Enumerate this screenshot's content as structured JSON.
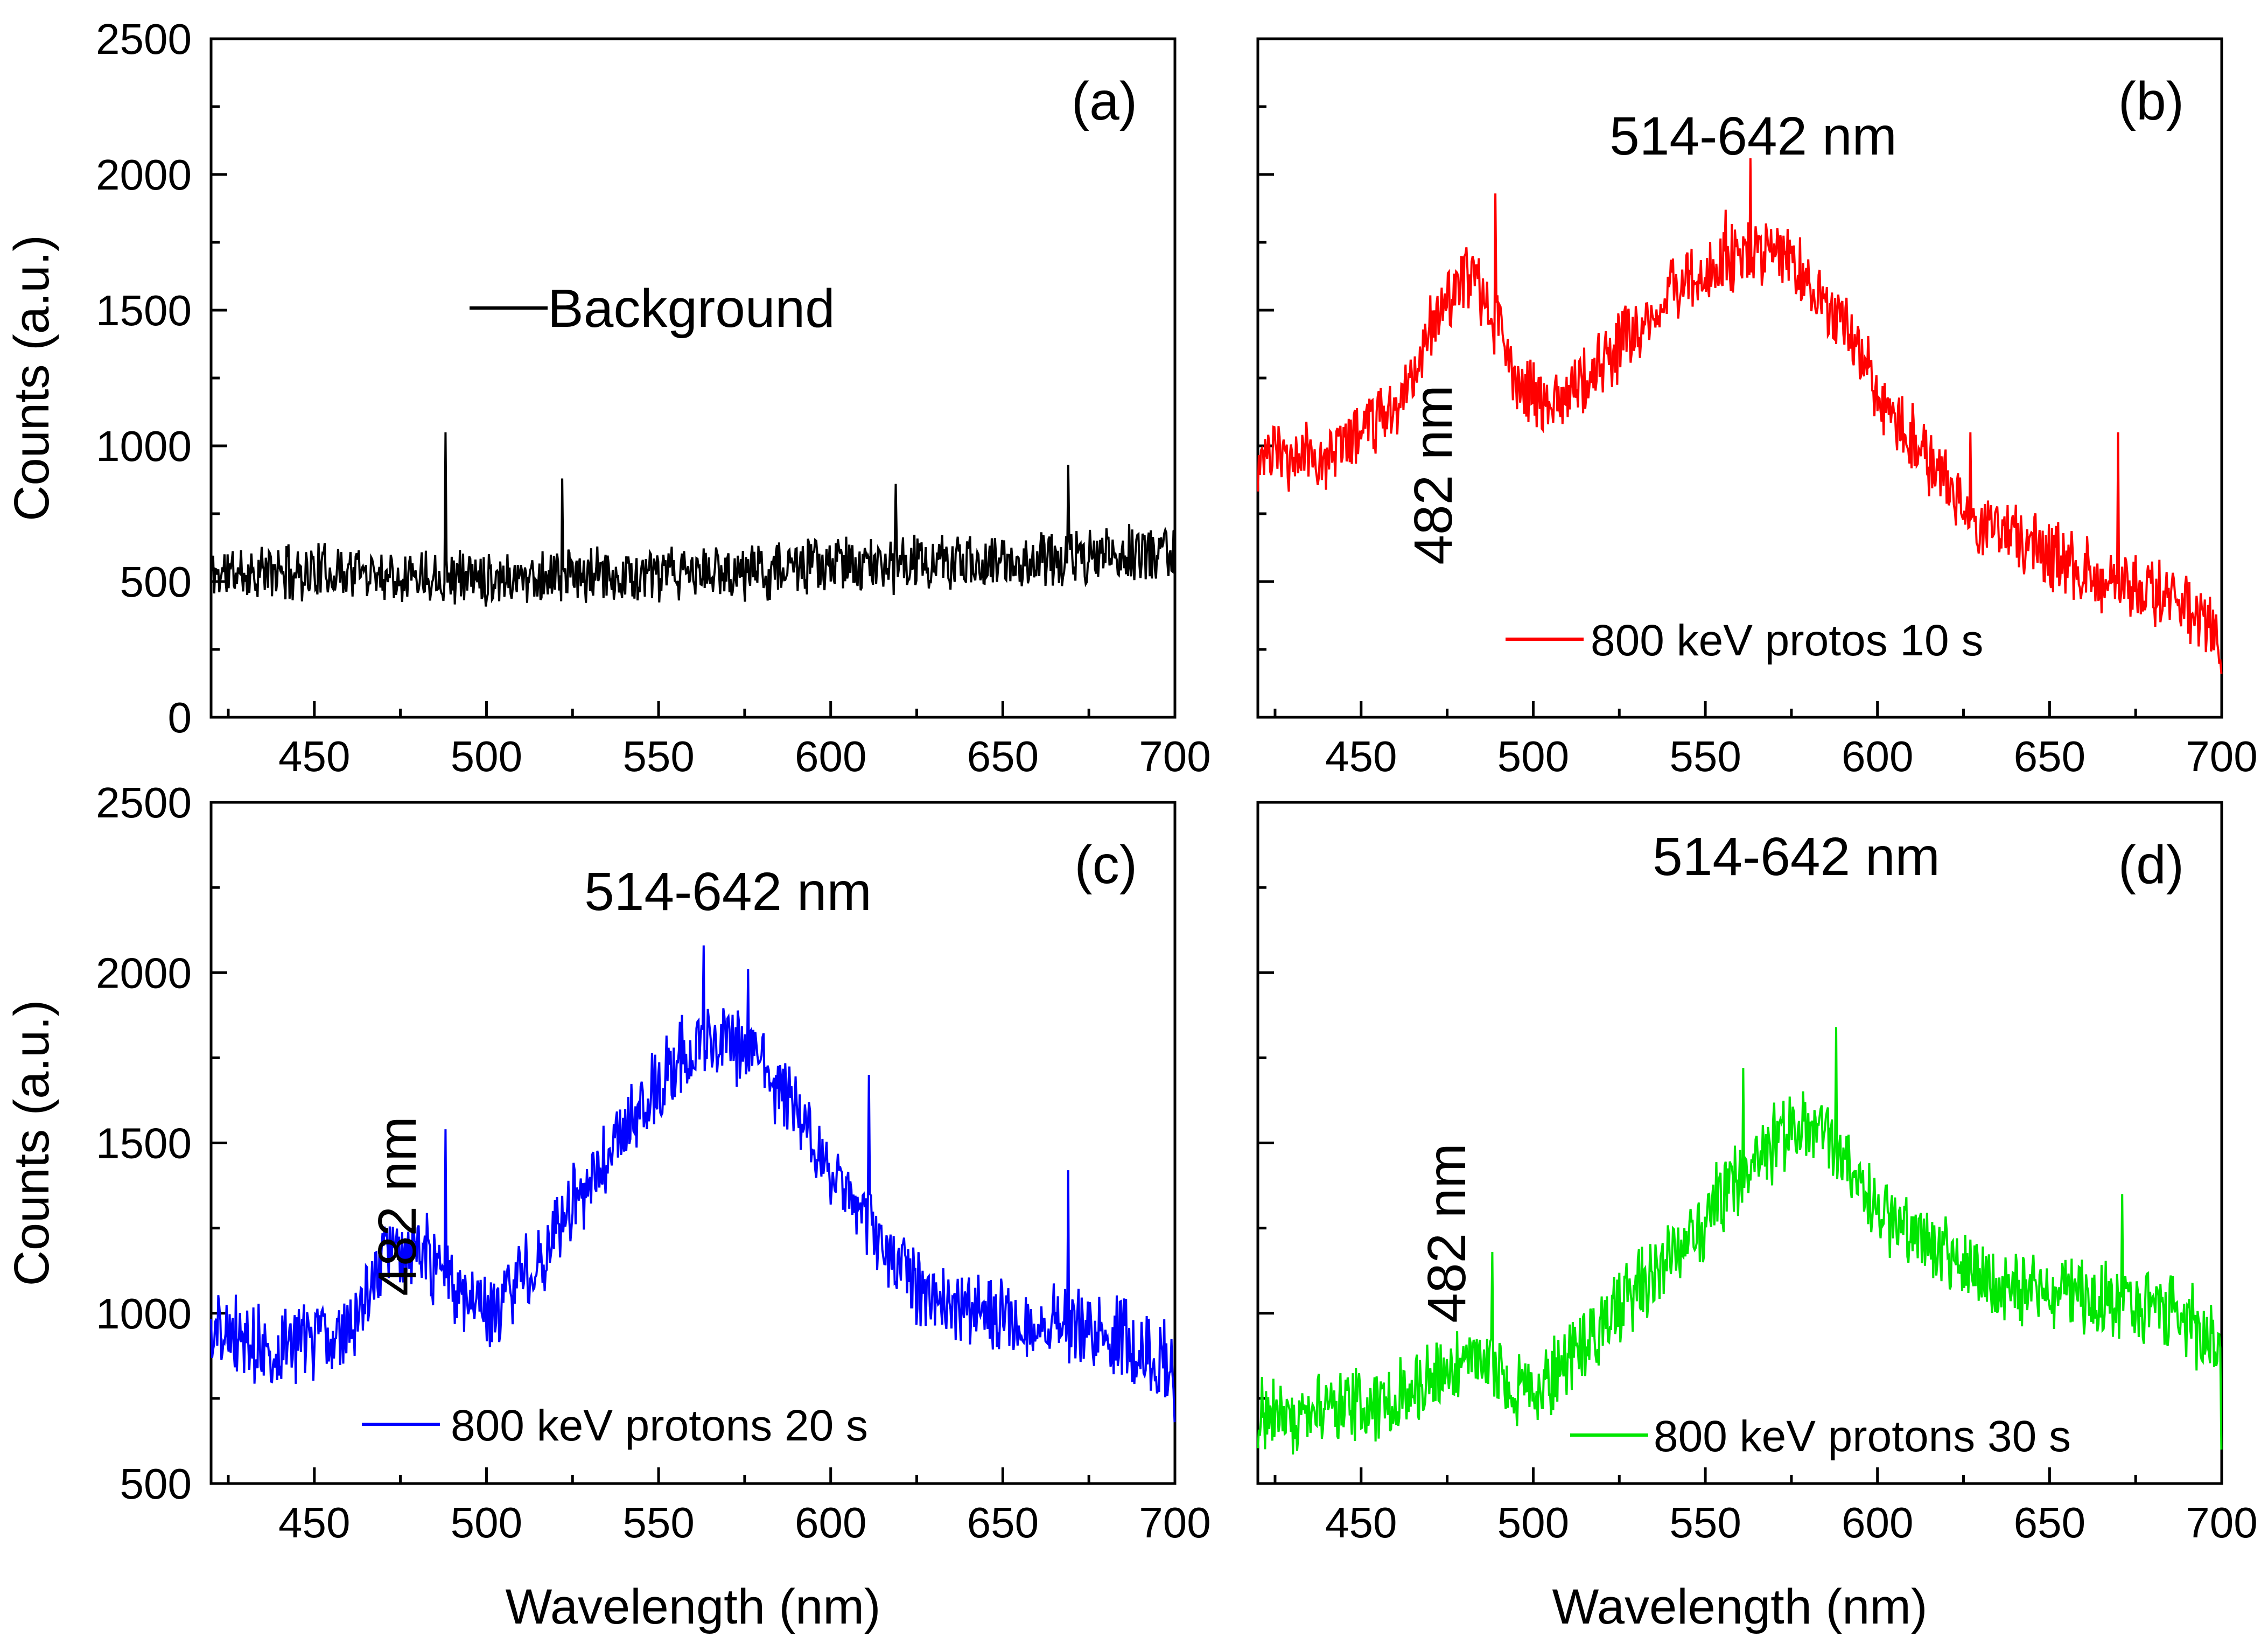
{
  "chart_data": [
    {
      "id": "a",
      "type": "line",
      "panel_label": "(a)",
      "xlabel": "",
      "ylabel": "Counts (a.u.)",
      "xlim": [
        420,
        700
      ],
      "ylim": [
        0,
        2500
      ],
      "xticks": [
        450,
        500,
        550,
        600,
        650,
        700
      ],
      "yticks": [
        0,
        500,
        1000,
        1500,
        2000,
        2500
      ],
      "show_ytick_labels": true,
      "show_xtick_labels": true,
      "legend": "Background",
      "legend_position": "upper-center",
      "color": "#000000",
      "series": [
        {
          "name": "Background",
          "envelope": [
            [
              420,
              530
            ],
            [
              460,
              540
            ],
            [
              500,
              520
            ],
            [
              550,
              520
            ],
            [
              600,
              560
            ],
            [
              650,
              570
            ],
            [
              700,
              610
            ]
          ],
          "noise": 90,
          "seed": 11,
          "spikes": [
            [
              488,
              1050
            ],
            [
              522,
              880
            ],
            [
              619,
              860
            ],
            [
              669,
              930
            ]
          ]
        }
      ]
    },
    {
      "id": "b",
      "type": "line",
      "panel_label": "(b)",
      "xlabel": "",
      "ylabel": "",
      "xlim": [
        420,
        700
      ],
      "ylim": [
        0,
        2500
      ],
      "xticks": [
        450,
        500,
        550,
        600,
        650,
        700
      ],
      "yticks": [
        0,
        500,
        1000,
        1500,
        2000,
        2500
      ],
      "show_ytick_labels": false,
      "show_xtick_labels": true,
      "legend": "800 keV protos 10 s",
      "legend_position": "lower-center",
      "annotations": [
        {
          "text": "514-642 nm",
          "kind": "peak-label"
        },
        {
          "text": "482 nm",
          "kind": "side-label"
        }
      ],
      "color": "#ff0000",
      "series": [
        {
          "name": "800 keV protos 10 s",
          "envelope": [
            [
              420,
              950
            ],
            [
              440,
              970
            ],
            [
              460,
              1150
            ],
            [
              475,
              1550
            ],
            [
              482,
              1620
            ],
            [
              488,
              1500
            ],
            [
              495,
              1250
            ],
            [
              505,
              1150
            ],
            [
              520,
              1300
            ],
            [
              540,
              1550
            ],
            [
              560,
              1720
            ],
            [
              575,
              1680
            ],
            [
              590,
              1450
            ],
            [
              600,
              1200
            ],
            [
              615,
              950
            ],
            [
              630,
              720
            ],
            [
              650,
              600
            ],
            [
              670,
              500
            ],
            [
              685,
              450
            ],
            [
              700,
              300
            ]
          ],
          "noise": 110,
          "seed": 23,
          "spikes": [
            [
              489,
              1930
            ],
            [
              556,
              1870
            ],
            [
              563,
              2060
            ],
            [
              627,
              1050
            ],
            [
              670,
              1050
            ],
            [
              700,
              160
            ]
          ]
        }
      ]
    },
    {
      "id": "c",
      "type": "line",
      "panel_label": "(c)",
      "xlabel": "Wavelength (nm)",
      "ylabel": "Counts (a.u.)",
      "xlim": [
        420,
        700
      ],
      "ylim": [
        500,
        2500
      ],
      "xticks": [
        450,
        500,
        550,
        600,
        650,
        700
      ],
      "yticks": [
        500,
        1000,
        1500,
        2000,
        2500
      ],
      "show_ytick_labels": true,
      "show_xtick_labels": true,
      "legend": "800 keV protons 20 s",
      "legend_position": "lower-left",
      "annotations": [
        {
          "text": "514-642 nm",
          "kind": "peak-label"
        },
        {
          "text": "482 nm",
          "kind": "side-label"
        }
      ],
      "color": "#0000ff",
      "series": [
        {
          "name": "800 keV protons 20 s",
          "envelope": [
            [
              420,
              950
            ],
            [
              440,
              900
            ],
            [
              460,
              960
            ],
            [
              470,
              1150
            ],
            [
              482,
              1180
            ],
            [
              492,
              1050
            ],
            [
              500,
              1000
            ],
            [
              515,
              1150
            ],
            [
              530,
              1400
            ],
            [
              545,
              1600
            ],
            [
              560,
              1790
            ],
            [
              570,
              1800
            ],
            [
              580,
              1740
            ],
            [
              595,
              1500
            ],
            [
              610,
              1280
            ],
            [
              625,
              1080
            ],
            [
              640,
              1000
            ],
            [
              660,
              980
            ],
            [
              680,
              950
            ],
            [
              700,
              850
            ]
          ],
          "noise": 100,
          "seed": 37,
          "spikes": [
            [
              488,
              1540
            ],
            [
              563,
              2080
            ],
            [
              576,
              2010
            ],
            [
              611,
              1700
            ],
            [
              669,
              1420
            ],
            [
              700,
              680
            ]
          ]
        }
      ]
    },
    {
      "id": "d",
      "type": "line",
      "panel_label": "(d)",
      "xlabel": "Wavelength (nm)",
      "ylabel": "",
      "xlim": [
        420,
        700
      ],
      "ylim": [
        500,
        2500
      ],
      "xticks": [
        450,
        500,
        550,
        600,
        650,
        700
      ],
      "yticks": [
        500,
        1000,
        1500,
        2000,
        2500
      ],
      "show_ytick_labels": false,
      "show_xtick_labels": true,
      "legend": "800 keV protons 30 s",
      "legend_position": "lower-center",
      "annotations": [
        {
          "text": "514-642 nm",
          "kind": "peak-label"
        },
        {
          "text": "482 nm",
          "kind": "side-label"
        }
      ],
      "color": "#00e600",
      "series": [
        {
          "name": "800 keV protons 30 s",
          "envelope": [
            [
              420,
              700
            ],
            [
              440,
              720
            ],
            [
              460,
              760
            ],
            [
              475,
              820
            ],
            [
              485,
              880
            ],
            [
              495,
              780
            ],
            [
              505,
              800
            ],
            [
              520,
              980
            ],
            [
              540,
              1150
            ],
            [
              555,
              1350
            ],
            [
              570,
              1500
            ],
            [
              580,
              1560
            ],
            [
              590,
              1480
            ],
            [
              600,
              1300
            ],
            [
              615,
              1200
            ],
            [
              630,
              1100
            ],
            [
              650,
              1060
            ],
            [
              670,
              1040
            ],
            [
              690,
              980
            ],
            [
              700,
              900
            ]
          ],
          "noise": 100,
          "seed": 51,
          "spikes": [
            [
              488,
              1180
            ],
            [
              561,
              1720
            ],
            [
              588,
              1840
            ],
            [
              671,
              1350
            ],
            [
              700,
              600
            ]
          ]
        }
      ]
    }
  ]
}
